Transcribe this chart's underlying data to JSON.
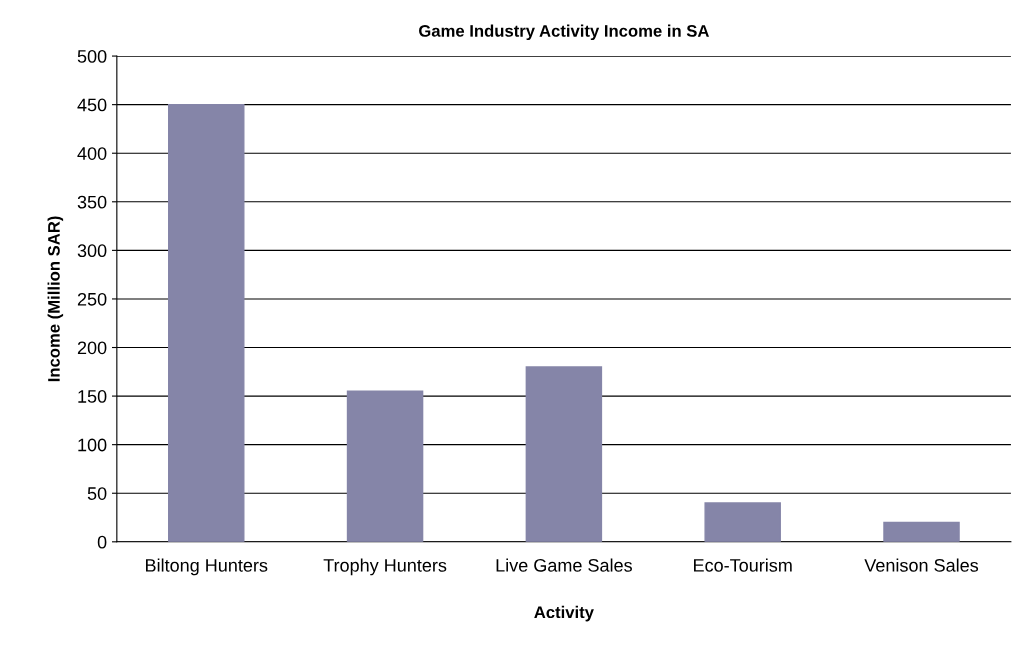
{
  "chart_data": {
    "type": "bar",
    "title": "Game Industry Activity Income in SA",
    "xlabel": "Activity",
    "ylabel": "Income (Million SAR)",
    "categories": [
      "Biltong Hunters",
      "Trophy Hunters",
      "Live Game Sales",
      "Eco-Tourism",
      "Venison Sales"
    ],
    "values": [
      450,
      155,
      180,
      40,
      20
    ],
    "color": "#8585a8",
    "ylim": [
      0,
      500
    ],
    "yticks": [
      0,
      50,
      100,
      150,
      200,
      250,
      300,
      350,
      400,
      450,
      500
    ],
    "grid": "y",
    "legend": false
  }
}
